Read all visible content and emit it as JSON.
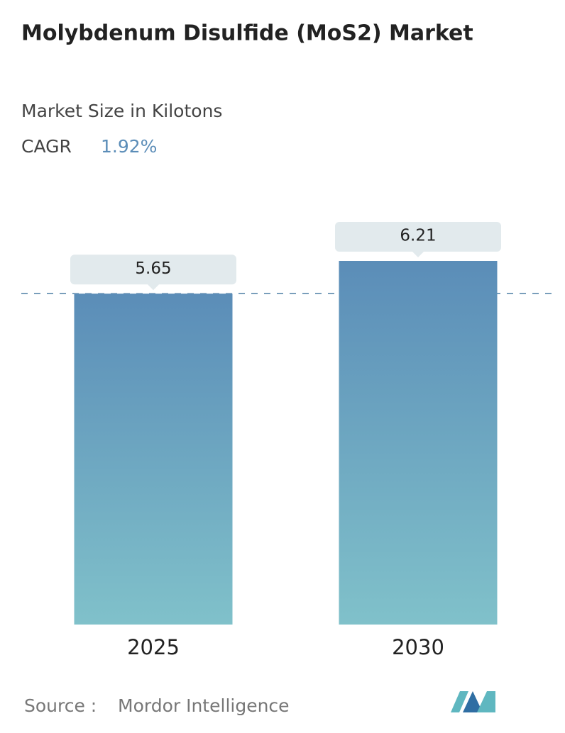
{
  "chart_data": {
    "type": "bar",
    "title": "Molybdenum Disulfide (MoS2) Market",
    "subtitle": "Market Size in Kilotons",
    "cagr_label": "CAGR",
    "cagr_value": "1.92%",
    "categories": [
      "2025",
      "2030"
    ],
    "values": [
      5.65,
      6.21
    ],
    "color": "#5b8db8",
    "color_bottom": "#80c1ca",
    "source_label": "Source :",
    "source": "Mordor Intelligence"
  }
}
